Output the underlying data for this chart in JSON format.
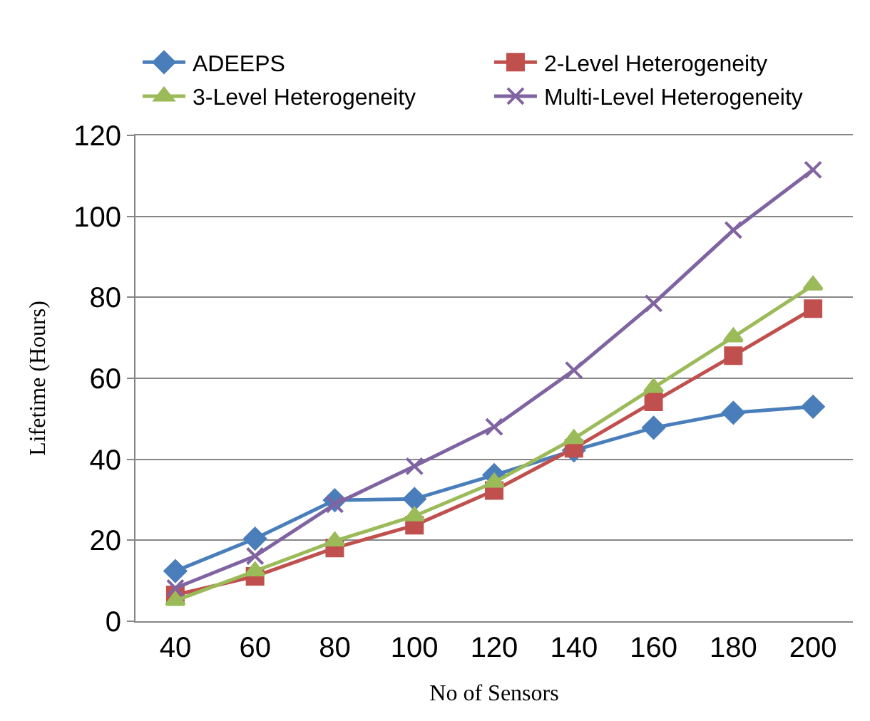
{
  "chart_data": {
    "type": "line",
    "xlabel": "No of Sensors",
    "ylabel": "Lifetime (Hours)",
    "categories": [
      "40",
      "60",
      "80",
      "100",
      "120",
      "140",
      "160",
      "180",
      "200"
    ],
    "series": [
      {
        "name": "ADEEPS",
        "color": "#4a7ebb",
        "marker": "diamond",
        "values": [
          12.4,
          20.4,
          29.9,
          30.2,
          36.1,
          42.2,
          47.8,
          51.5,
          53.0
        ]
      },
      {
        "name": "2-Level Heterogeneity",
        "color": "#c0504d",
        "marker": "square",
        "values": [
          6.5,
          11.1,
          18.1,
          23.7,
          32.3,
          42.7,
          54.2,
          65.6,
          77.2
        ]
      },
      {
        "name": "3-Level Heterogeneity",
        "color": "#9bbb59",
        "marker": "triangle",
        "values": [
          5.1,
          12.4,
          19.8,
          26.0,
          34.3,
          45.1,
          57.7,
          70.2,
          83.0
        ]
      },
      {
        "name": "Multi-Level Heterogeneity",
        "color": "#8064a2",
        "marker": "cross",
        "values": [
          8.2,
          16.1,
          28.9,
          38.3,
          48.0,
          62.0,
          78.5,
          96.6,
          111.5
        ]
      }
    ],
    "ylim": [
      0,
      120
    ],
    "yticks": [
      0,
      20,
      40,
      60,
      80,
      100,
      120
    ],
    "grid": "y",
    "legend": "top",
    "line_style": "solid"
  }
}
